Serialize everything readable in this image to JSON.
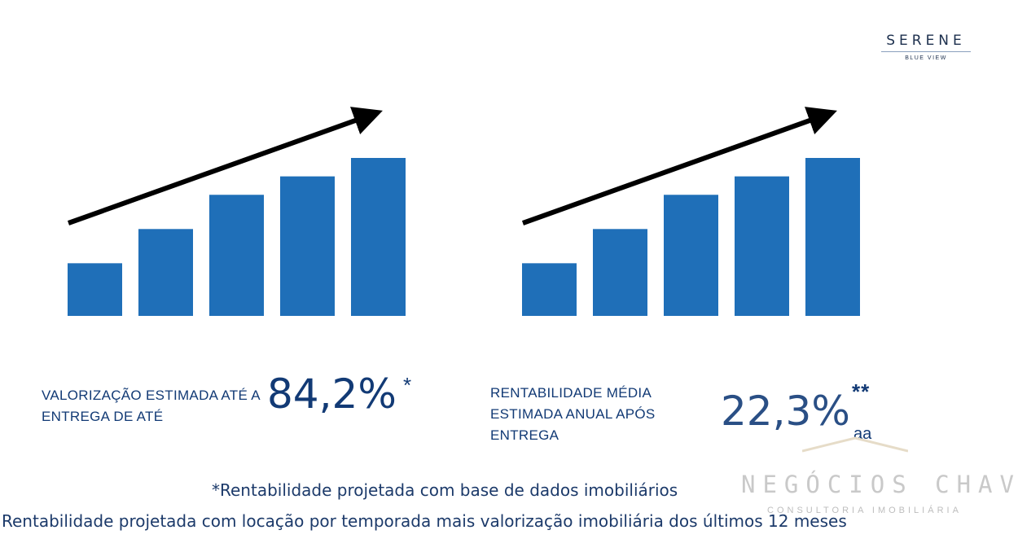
{
  "brand": {
    "name": "SERENE",
    "tagline": "BLUE VIEW"
  },
  "colors": {
    "bar": "#1f6fb8",
    "arrow": "#000000",
    "text": "#123a75"
  },
  "icons": {
    "arrow": "trend-up-arrow-icon",
    "bars": "bar-growth-icon"
  },
  "panels": {
    "left": {
      "label": "VALORIZAÇÃO ESTIMADA ATÉ A ENTREGA DE ATÉ",
      "value": "84,2%",
      "marker": "*"
    },
    "right": {
      "label": "RENTABILIDADE MÉDIA ESTIMADA ANUAL APÓS ENTREGA",
      "value": "22,3%",
      "marker": "**",
      "unit": "aa"
    }
  },
  "illustration": {
    "type": "bar",
    "values": [
      1,
      1.65,
      2.3,
      2.65,
      3
    ]
  },
  "watermark": {
    "title": "NEGÓCIOS CHAVES",
    "subtitle": "CONSULTORIA IMOBILIÁRIA"
  },
  "footnotes": {
    "first": "*Rentabilidade projetada com base de dados imobiliários",
    "second": "Rentabilidade projetada com locação por temporada mais valorização imobiliária dos últimos 12 meses"
  }
}
